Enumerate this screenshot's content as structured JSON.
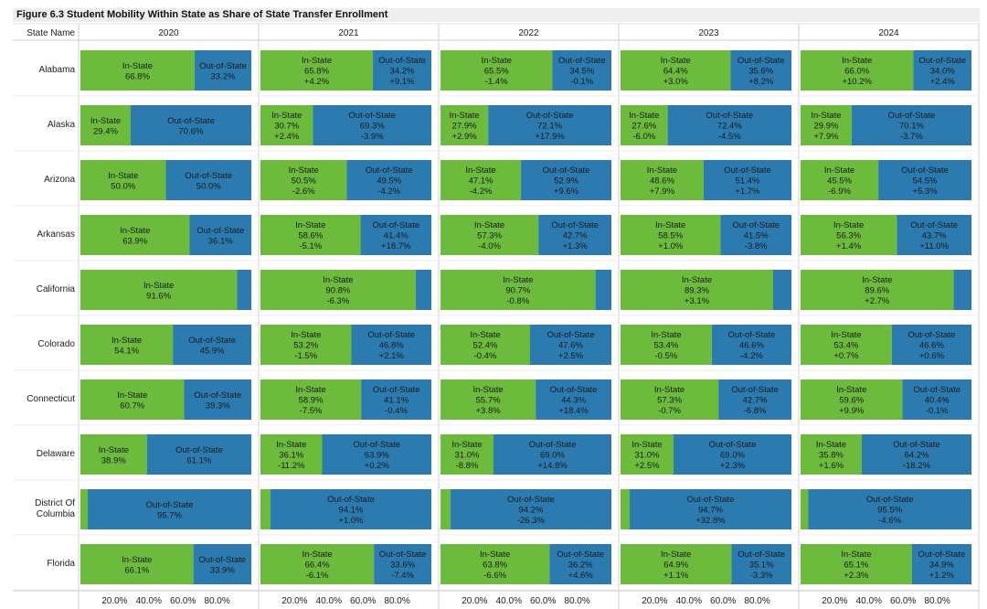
{
  "chart_title": "Figure 6.3 Student Mobility Within State as Share of State Transfer Enrollment",
  "colors": {
    "in_state": "#6cbb3c",
    "out_of_state": "#2b7bb0"
  },
  "chart_data": {
    "type": "bar",
    "stacked": true,
    "orientation": "horizontal",
    "title": "Figure 6.3 Student Mobility Within State as Share of State Transfer Enrollment",
    "row_header": "State Name",
    "series_labels": {
      "in_state": "In-State",
      "out_of_state": "Out-of-State"
    },
    "years": [
      "2020",
      "2021",
      "2022",
      "2023",
      "2024"
    ],
    "x_ticks": [
      "20.0%",
      "40.0%",
      "60.0%",
      "80.0%"
    ],
    "xlim": [
      0,
      100
    ],
    "rows": [
      {
        "state": [
          "Alabama"
        ],
        "cells": [
          {
            "in": 66.8,
            "out": 33.2
          },
          {
            "in": 65.8,
            "out": 34.2,
            "in_chg": "+4.2%",
            "out_chg": "+9.1%"
          },
          {
            "in": 65.5,
            "out": 34.5,
            "in_chg": "-1.4%",
            "out_chg": "-0.1%"
          },
          {
            "in": 64.4,
            "out": 35.6,
            "in_chg": "+3.0%",
            "out_chg": "+8.2%"
          },
          {
            "in": 66.0,
            "out": 34.0,
            "in_chg": "+10.2%",
            "out_chg": "+2.4%"
          }
        ]
      },
      {
        "state": [
          "Alaska"
        ],
        "cells": [
          {
            "in": 29.4,
            "out": 70.6
          },
          {
            "in": 30.7,
            "out": 69.3,
            "in_chg": "+2.4%",
            "out_chg": "-3.9%"
          },
          {
            "in": 27.9,
            "out": 72.1,
            "in_chg": "+2.9%",
            "out_chg": "+17.9%"
          },
          {
            "in": 27.6,
            "out": 72.4,
            "in_chg": "-6.0%",
            "out_chg": "-4.5%"
          },
          {
            "in": 29.9,
            "out": 70.1,
            "in_chg": "+7.9%",
            "out_chg": "-3.7%"
          }
        ]
      },
      {
        "state": [
          "Arizona"
        ],
        "cells": [
          {
            "in": 50.0,
            "out": 50.0
          },
          {
            "in": 50.5,
            "out": 49.5,
            "in_chg": "-2.6%",
            "out_chg": "-4.2%"
          },
          {
            "in": 47.1,
            "out": 52.9,
            "in_chg": "-4.2%",
            "out_chg": "+9.6%"
          },
          {
            "in": 48.6,
            "out": 51.4,
            "in_chg": "+7.9%",
            "out_chg": "+1.7%"
          },
          {
            "in": 45.5,
            "out": 54.5,
            "in_chg": "-6.9%",
            "out_chg": "+5.3%"
          }
        ]
      },
      {
        "state": [
          "Arkansas"
        ],
        "cells": [
          {
            "in": 63.9,
            "out": 36.1
          },
          {
            "in": 58.6,
            "out": 41.4,
            "in_chg": "-5.1%",
            "out_chg": "+18.7%"
          },
          {
            "in": 57.3,
            "out": 42.7,
            "in_chg": "-4.0%",
            "out_chg": "+1.3%"
          },
          {
            "in": 58.5,
            "out": 41.5,
            "in_chg": "+1.0%",
            "out_chg": "-3.8%"
          },
          {
            "in": 56.3,
            "out": 43.7,
            "in_chg": "+1.4%",
            "out_chg": "+11.0%"
          }
        ]
      },
      {
        "state": [
          "California"
        ],
        "cells": [
          {
            "in": 91.6,
            "out": 8.4
          },
          {
            "in": 90.8,
            "out": 9.2,
            "in_chg": "-6.3%"
          },
          {
            "in": 90.7,
            "out": 9.3,
            "in_chg": "-0.8%"
          },
          {
            "in": 89.3,
            "out": 10.7,
            "in_chg": "+3.1%"
          },
          {
            "in": 89.6,
            "out": 10.4,
            "in_chg": "+2.7%"
          }
        ]
      },
      {
        "state": [
          "Colorado"
        ],
        "cells": [
          {
            "in": 54.1,
            "out": 45.9
          },
          {
            "in": 53.2,
            "out": 46.8,
            "in_chg": "-1.5%",
            "out_chg": "+2.1%"
          },
          {
            "in": 52.4,
            "out": 47.6,
            "in_chg": "-0.4%",
            "out_chg": "+2.5%"
          },
          {
            "in": 53.4,
            "out": 46.6,
            "in_chg": "-0.5%",
            "out_chg": "-4.2%"
          },
          {
            "in": 53.4,
            "out": 46.6,
            "in_chg": "+0.7%",
            "out_chg": "+0.6%"
          }
        ]
      },
      {
        "state": [
          "Connecticut"
        ],
        "cells": [
          {
            "in": 60.7,
            "out": 39.3
          },
          {
            "in": 58.9,
            "out": 41.1,
            "in_chg": "-7.5%",
            "out_chg": "-0.4%"
          },
          {
            "in": 55.7,
            "out": 44.3,
            "in_chg": "+3.8%",
            "out_chg": "+18.4%"
          },
          {
            "in": 57.3,
            "out": 42.7,
            "in_chg": "-0.7%",
            "out_chg": "-6.8%"
          },
          {
            "in": 59.6,
            "out": 40.4,
            "in_chg": "+9.9%",
            "out_chg": "-0.1%"
          }
        ]
      },
      {
        "state": [
          "Delaware"
        ],
        "cells": [
          {
            "in": 38.9,
            "out": 61.1
          },
          {
            "in": 36.1,
            "out": 63.9,
            "in_chg": "-11.2%",
            "out_chg": "+0.2%"
          },
          {
            "in": 31.0,
            "out": 69.0,
            "in_chg": "-8.8%",
            "out_chg": "+14.8%"
          },
          {
            "in": 31.0,
            "out": 69.0,
            "in_chg": "+2.5%",
            "out_chg": "+2.3%"
          },
          {
            "in": 35.8,
            "out": 64.2,
            "in_chg": "+1.6%",
            "out_chg": "-18.2%"
          }
        ]
      },
      {
        "state": [
          "District Of",
          "Columbia"
        ],
        "cells": [
          {
            "in": 4.3,
            "out": 95.7
          },
          {
            "in": 5.9,
            "out": 94.1,
            "out_chg": "+1.0%"
          },
          {
            "in": 5.8,
            "out": 94.2,
            "out_chg": "-26.3%"
          },
          {
            "in": 5.3,
            "out": 94.7,
            "out_chg": "+32.8%"
          },
          {
            "in": 4.5,
            "out": 95.5,
            "out_chg": "-4.6%"
          }
        ]
      },
      {
        "state": [
          "Florida"
        ],
        "cells": [
          {
            "in": 66.1,
            "out": 33.9
          },
          {
            "in": 66.4,
            "out": 33.6,
            "in_chg": "-6.1%",
            "out_chg": "-7.4%"
          },
          {
            "in": 63.8,
            "out": 36.2,
            "in_chg": "-6.6%",
            "out_chg": "+4.6%"
          },
          {
            "in": 64.9,
            "out": 35.1,
            "in_chg": "+1.1%",
            "out_chg": "-3.3%"
          },
          {
            "in": 65.1,
            "out": 34.9,
            "in_chg": "+2.3%",
            "out_chg": "+1.2%"
          }
        ]
      }
    ]
  }
}
